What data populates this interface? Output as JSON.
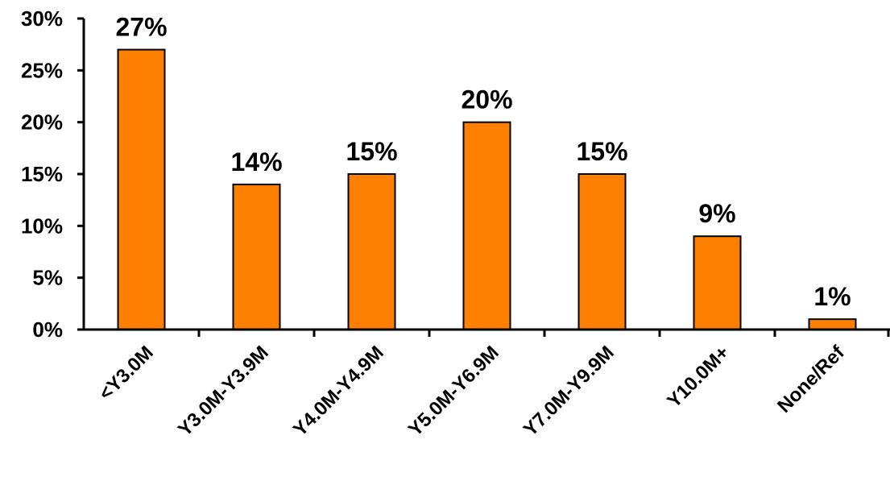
{
  "chart_data": {
    "type": "bar",
    "categories": [
      "<Y3.0M",
      "Y3.0M-Y3.9M",
      "Y4.0M-Y4.9M",
      "Y5.0M-Y6.9M",
      "Y7.0M-Y9.9M",
      "Y10.0M+",
      "None/Ref"
    ],
    "values": [
      27,
      14,
      15,
      20,
      15,
      9,
      1
    ],
    "data_labels": [
      "27%",
      "14%",
      "15%",
      "20%",
      "15%",
      "9%",
      "1%"
    ],
    "y_ticks": [
      {
        "value": 0,
        "label": "0%"
      },
      {
        "value": 5,
        "label": "5%"
      },
      {
        "value": 10,
        "label": "10%"
      },
      {
        "value": 15,
        "label": "15%"
      },
      {
        "value": 20,
        "label": "20%"
      },
      {
        "value": 25,
        "label": "25%"
      },
      {
        "value": 30,
        "label": "30%"
      }
    ],
    "ylim": [
      0,
      30
    ],
    "title": "",
    "xlabel": "",
    "ylabel": "",
    "grid": false,
    "legend": "none",
    "bar_color": "#ff7f00",
    "bar_outline_color": "#000000"
  }
}
